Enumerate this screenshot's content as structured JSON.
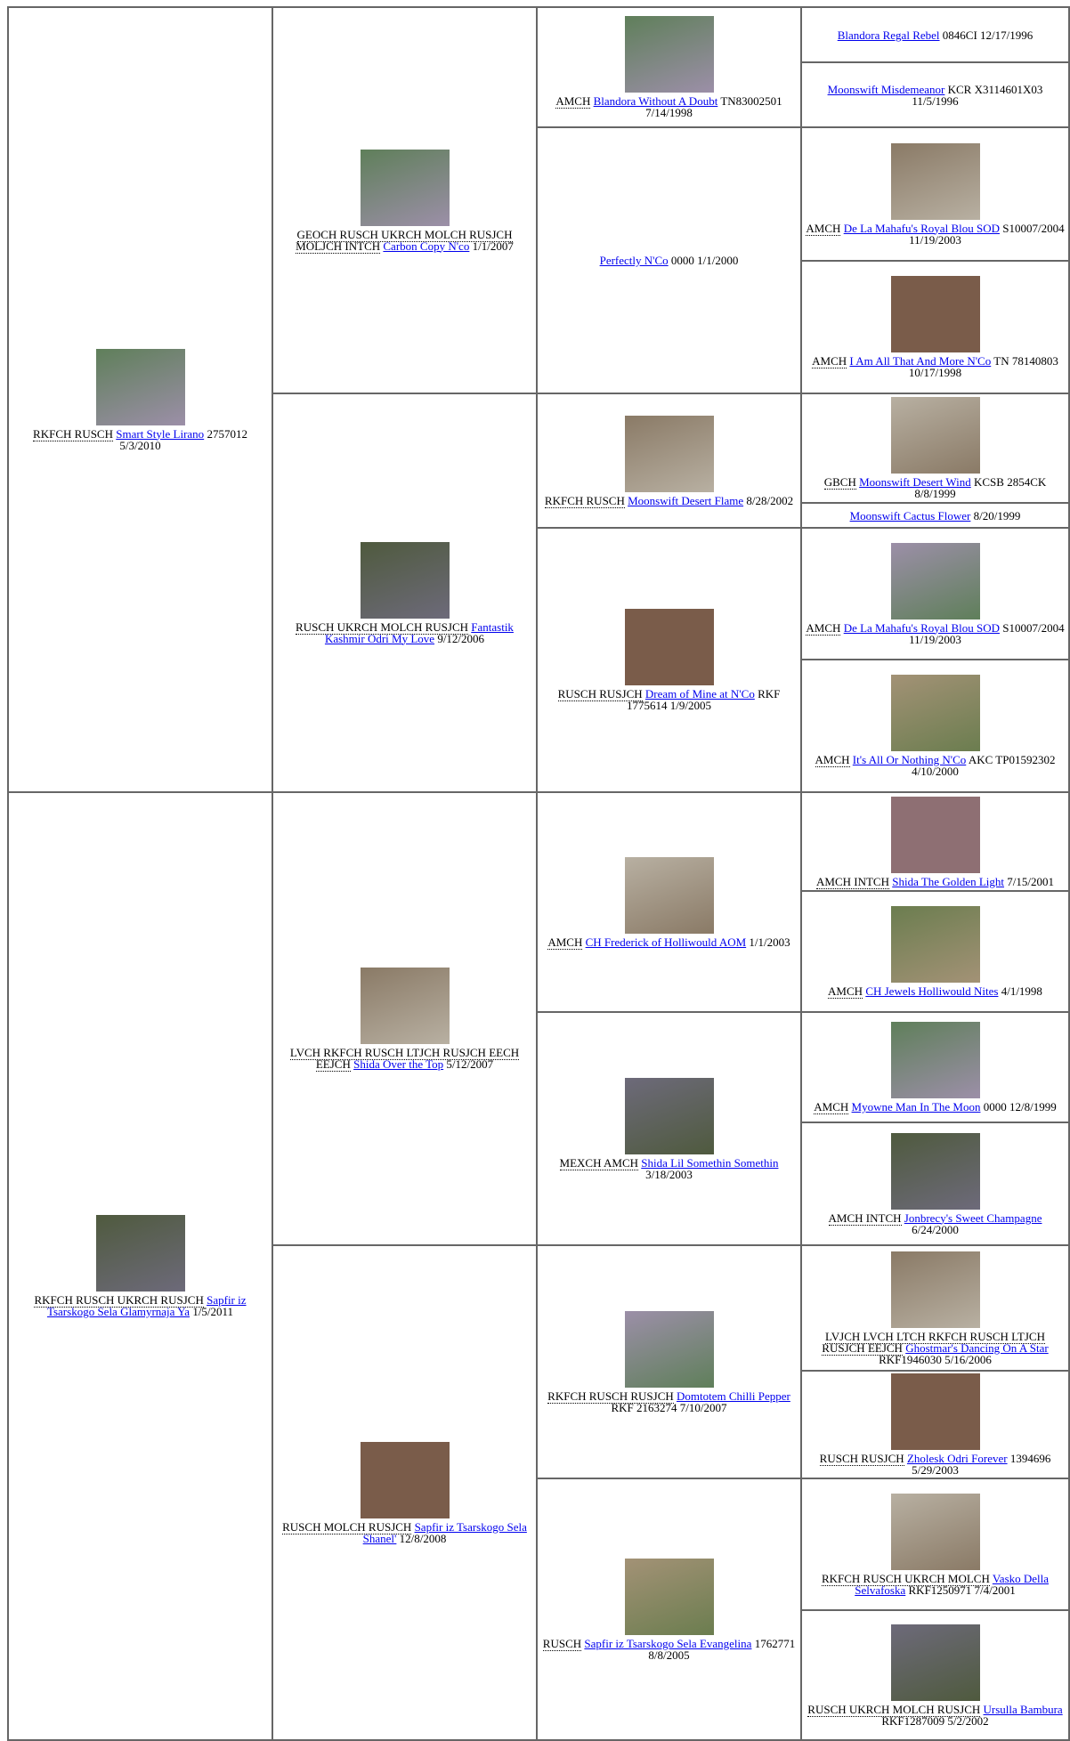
{
  "pedigree": {
    "gen1": [
      {
        "titles": "RKFCH RUSCH",
        "name": "Smart Style Lirano",
        "info": "2757012 5/3/2010"
      },
      {
        "titles": "RKFCH RUSCH UKRCH RUSJCH",
        "name": "Sapfir iz Tsarskogo Sela Glamyrnaja Ya",
        "info": "1/5/2011"
      }
    ],
    "gen2": [
      {
        "titles": "GEOCH RUSCH UKRCH MOLCH RUSJCH MOLJCH INTCH",
        "name": "Carbon Copy N'co",
        "info": "1/1/2007"
      },
      {
        "titles": "RUSCH UKRCH MOLCH RUSJCH",
        "name": "Fantastik Kashmir Odri My Love",
        "info": "9/12/2006"
      },
      {
        "titles": "LVCH RKFCH RUSCH LTJCH RUSJCH EECH EEJCH",
        "name": "Shida Over the Top",
        "info": "5/12/2007"
      },
      {
        "titles": "RUSCH MOLCH RUSJCH",
        "name": "Sapfir iz Tsarskogo Sela Shanel'",
        "info": "12/8/2008"
      }
    ],
    "gen3": [
      {
        "titles": "AMCH",
        "name": "Blandora Without A Doubt",
        "info": "TN83002501 7/14/1998"
      },
      {
        "name": "Perfectly N'Co",
        "info": "0000 1/1/2000"
      },
      {
        "titles": "RKFCH RUSCH",
        "name": "Moonswift Desert Flame",
        "info": "8/28/2002"
      },
      {
        "titles": "RUSCH RUSJCH",
        "name": "Dream of Mine at N'Co",
        "info": "RKF 1775614 1/9/2005"
      },
      {
        "titles": "AMCH",
        "name": "CH Frederick of Holliwould AOM",
        "info": "1/1/2003"
      },
      {
        "titles": "MEXCH AMCH",
        "name": "Shida Lil Somethin Somethin",
        "info": "3/18/2003"
      },
      {
        "titles": "RKFCH RUSCH RUSJCH",
        "name": "Domtotem Chilli Pepper",
        "info": "RKF 2163274 7/10/2007"
      },
      {
        "titles": "RUSCH",
        "name": "Sapfir iz Tsarskogo Sela Evangelina",
        "info": "1762771 8/8/2005"
      }
    ],
    "gen4": [
      {
        "name": "Blandora Regal Rebel",
        "info": "0846CI 12/17/1996"
      },
      {
        "name": "Moonswift Misdemeanor",
        "info": "KCR X3114601X03 11/5/1996"
      },
      {
        "titles": "AMCH",
        "name": "De La Mahafu's Royal Blou SOD",
        "info": "S10007/2004 11/19/2003"
      },
      {
        "titles": "AMCH",
        "name": "I Am All That And More N'Co",
        "info": "TN 78140803 10/17/1998"
      },
      {
        "titles": "GBCH",
        "name": "Moonswift Desert Wind",
        "info": "KCSB 2854CK 8/8/1999"
      },
      {
        "name": "Moonswift Cactus Flower",
        "info": "8/20/1999"
      },
      {
        "titles": "AMCH",
        "name": "De La Mahafu's Royal Blou SOD",
        "info": "S10007/2004 11/19/2003"
      },
      {
        "titles": "AMCH",
        "name": "It's All Or Nothing N'Co",
        "info": "AKC TP01592302 4/10/2000"
      },
      {
        "titles": "AMCH INTCH",
        "name": "Shida The Golden Light",
        "info": "7/15/2001"
      },
      {
        "titles": "AMCH",
        "name": "CH Jewels Holliwould Nites",
        "info": "4/1/1998"
      },
      {
        "titles": "AMCH",
        "name": "Myowne Man In The Moon",
        "info": "0000 12/8/1999"
      },
      {
        "titles": "AMCH INTCH",
        "name": "Jonbrecy's Sweet Champagne",
        "info": "6/24/2000"
      },
      {
        "titles": "LVJCH LVCH LTCH RKFCH RUSCH LTJCH RUSJCH EEJCH",
        "name": "Ghostmar's Dancing On A Star",
        "info": "RKF1946030 5/16/2006"
      },
      {
        "titles": "RUSCH RUSJCH",
        "name": "Zholesk Odri Forever",
        "info": "1394696 5/29/2003"
      },
      {
        "titles": "RKFCH RUSCH UKRCH MOLCH",
        "name": "Vasko Della Selvafoska",
        "info": "RKF1250971 7/4/2001"
      },
      {
        "titles": "RUSCH UKRCH MOLCH RUSJCH",
        "name": "Ursulla Bambura",
        "info": "RKF1287009 5/2/2002"
      }
    ]
  }
}
